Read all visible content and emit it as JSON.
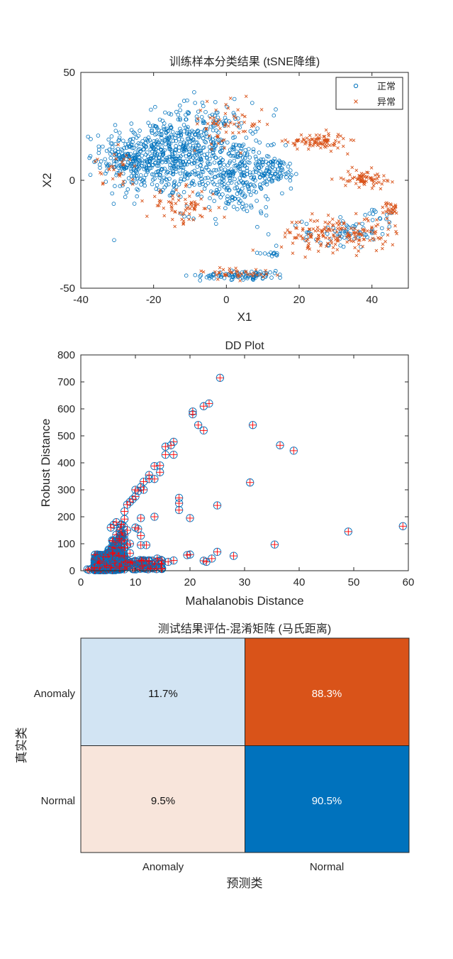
{
  "chart_data": [
    {
      "type": "scatter",
      "title": "训练样本分类结果 (tSNE降维)",
      "xlabel": "X1",
      "ylabel": "X2",
      "xlim": [
        -40,
        50
      ],
      "ylim": [
        -50,
        50
      ],
      "xticks": [
        -40,
        -20,
        0,
        20,
        40
      ],
      "yticks": [
        -50,
        0,
        50
      ],
      "legend": {
        "position": "top-right",
        "entries": [
          "正常",
          "异常"
        ]
      },
      "colors": {
        "normal": "#0072BD",
        "anomaly": "#D95319"
      },
      "series": [
        {
          "name": "正常",
          "marker": "circle",
          "clusters": [
            {
              "cx": -20,
              "cy": 10,
              "sx": 7,
              "sy": 9,
              "n": 380
            },
            {
              "cx": -8,
              "cy": 18,
              "sx": 7,
              "sy": 9,
              "n": 260
            },
            {
              "cx": 2,
              "cy": 2,
              "sx": 7,
              "sy": 9,
              "n": 320
            },
            {
              "cx": -28,
              "cy": 10,
              "sx": 3,
              "sy": 5,
              "n": 80
            },
            {
              "cx": 13,
              "cy": 5,
              "sx": 3,
              "sy": 3,
              "n": 60
            },
            {
              "cx": 5,
              "cy": -44,
              "sx": 6,
              "sy": 1,
              "n": 90
            },
            {
              "cx": 12,
              "cy": -34,
              "sx": 2,
              "sy": 0.5,
              "n": 12
            },
            {
              "cx": 33,
              "cy": -24,
              "sx": 6,
              "sy": 3,
              "n": 70
            },
            {
              "cx": 42,
              "cy": -16,
              "sx": 2,
              "sy": 2,
              "n": 12
            }
          ]
        },
        {
          "name": "异常",
          "marker": "x",
          "clusters": [
            {
              "cx": 0,
              "cy": 26,
              "sx": 5,
              "sy": 5,
              "n": 60
            },
            {
              "cx": -12,
              "cy": -12,
              "sx": 5,
              "sy": 4,
              "n": 70
            },
            {
              "cx": 25,
              "cy": 18,
              "sx": 4,
              "sy": 2,
              "n": 90
            },
            {
              "cx": 31,
              "cy": -25,
              "sx": 8,
              "sy": 4,
              "n": 180
            },
            {
              "cx": 38,
              "cy": 1,
              "sx": 3,
              "sy": 2,
              "n": 70
            },
            {
              "cx": 45,
              "cy": -13,
              "sx": 1,
              "sy": 1.5,
              "n": 25
            },
            {
              "cx": -30,
              "cy": 5,
              "sx": 3,
              "sy": 4,
              "n": 30
            },
            {
              "cx": 3,
              "cy": -43,
              "sx": 5,
              "sy": 1.5,
              "n": 40
            }
          ]
        }
      ]
    },
    {
      "type": "scatter",
      "title": "DD Plot",
      "xlabel": "Mahalanobis Distance",
      "ylabel": "Robust Distance",
      "xlim": [
        0,
        60
      ],
      "ylim": [
        0,
        800
      ],
      "xticks": [
        0,
        10,
        20,
        30,
        40,
        50,
        60
      ],
      "yticks": [
        0,
        100,
        200,
        300,
        400,
        500,
        600,
        700,
        800
      ],
      "colors": {
        "circle": "#0072BD",
        "plus": "#FF0000"
      },
      "dense_region": {
        "x_range": [
          1,
          8
        ],
        "note": "dense overlapping markers near origin"
      },
      "points": [
        [
          25.5,
          715
        ],
        [
          23.5,
          620
        ],
        [
          22.5,
          610
        ],
        [
          20.5,
          590
        ],
        [
          20.5,
          580
        ],
        [
          21.5,
          540
        ],
        [
          31.5,
          540
        ],
        [
          22.5,
          520
        ],
        [
          36.5,
          465
        ],
        [
          39,
          445
        ],
        [
          17,
          478
        ],
        [
          16.5,
          465
        ],
        [
          15.5,
          460
        ],
        [
          15.5,
          430
        ],
        [
          17,
          430
        ],
        [
          14.5,
          390
        ],
        [
          13.5,
          388
        ],
        [
          14.5,
          365
        ],
        [
          13.5,
          340
        ],
        [
          12.5,
          355
        ],
        [
          12.5,
          340
        ],
        [
          31,
          327
        ],
        [
          11.5,
          330
        ],
        [
          11,
          310
        ],
        [
          11.5,
          300
        ],
        [
          10.5,
          295
        ],
        [
          10,
          300
        ],
        [
          10,
          275
        ],
        [
          9.5,
          265
        ],
        [
          9,
          255
        ],
        [
          8.5,
          245
        ],
        [
          8,
          220
        ],
        [
          18,
          270
        ],
        [
          18,
          250
        ],
        [
          18,
          225
        ],
        [
          25,
          242
        ],
        [
          13.5,
          200
        ],
        [
          20,
          195
        ],
        [
          11,
          195
        ],
        [
          10,
          160
        ],
        [
          10.5,
          155
        ],
        [
          8.5,
          150
        ],
        [
          7.5,
          140
        ],
        [
          11,
          130
        ],
        [
          11,
          95
        ],
        [
          12,
          95
        ],
        [
          9,
          100
        ],
        [
          8.5,
          95
        ],
        [
          8,
          85
        ],
        [
          49,
          145
        ],
        [
          59,
          165
        ],
        [
          35.5,
          97
        ],
        [
          25,
          70
        ],
        [
          28,
          55
        ],
        [
          20,
          60
        ],
        [
          19.5,
          58
        ],
        [
          22.5,
          37
        ],
        [
          23,
          33
        ],
        [
          24,
          45
        ],
        [
          16,
          33
        ],
        [
          17,
          38
        ],
        [
          14,
          45
        ],
        [
          12.5,
          35
        ],
        [
          9,
          65
        ],
        [
          8,
          55
        ],
        [
          7.5,
          110
        ],
        [
          7,
          120
        ],
        [
          6,
          170
        ],
        [
          5.5,
          160
        ],
        [
          6.5,
          180
        ],
        [
          9,
          30
        ],
        [
          1.2,
          5
        ],
        [
          1.5,
          3
        ],
        [
          2,
          8
        ],
        [
          2.5,
          12
        ]
      ]
    },
    {
      "type": "heatmap",
      "title": "测试结果评估-混淆矩阵 (马氏距离)",
      "xlabel": "预测类",
      "ylabel": "真实类",
      "row_labels": [
        "Anomaly",
        "Normal"
      ],
      "col_labels": [
        "Anomaly",
        "Normal"
      ],
      "cells": [
        [
          {
            "value": "11.7%",
            "color": "#D2E4F3",
            "text_color": "#111111"
          },
          {
            "value": "88.3%",
            "color": "#D95319",
            "text_color": "#ffffff"
          }
        ],
        [
          {
            "value": "9.5%",
            "color": "#F8E5DB",
            "text_color": "#111111"
          },
          {
            "value": "90.5%",
            "color": "#0072BD",
            "text_color": "#ffffff"
          }
        ]
      ]
    }
  ]
}
